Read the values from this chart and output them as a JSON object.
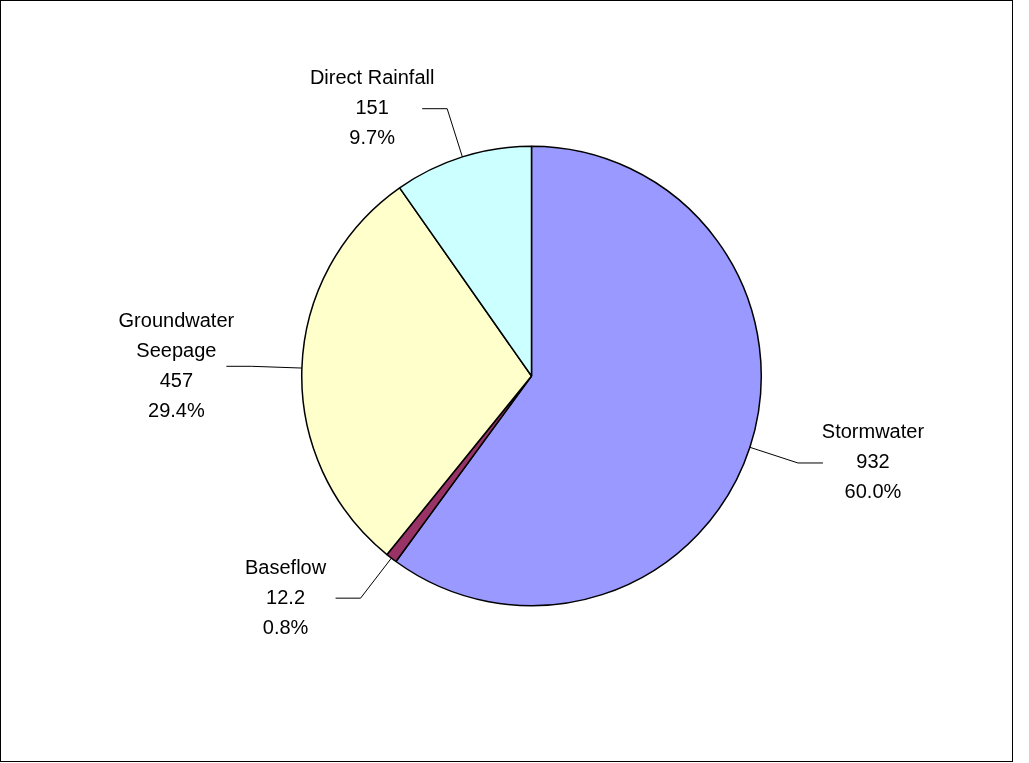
{
  "chart_data": {
    "type": "pie",
    "categories": [
      "Stormwater",
      "Baseflow",
      "Groundwater Seepage",
      "Direct Rainfall"
    ],
    "values": [
      932,
      12.2,
      457,
      151
    ],
    "colors": [
      "#9999ff",
      "#993366",
      "#ffffcc",
      "#ccffff"
    ],
    "value_labels": [
      "932\n60.0%",
      "12.2\n0.8%",
      "457\n29.4%",
      "151\n9.7%"
    ],
    "legend": false
  }
}
